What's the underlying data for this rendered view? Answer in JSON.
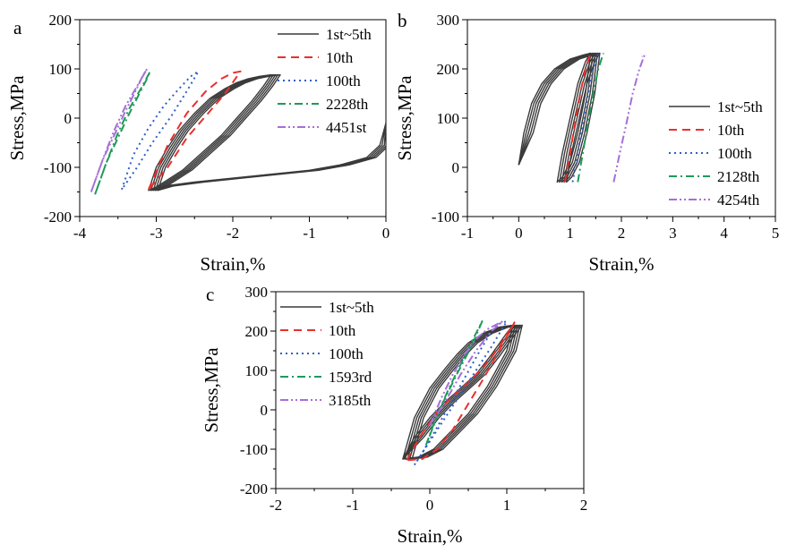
{
  "chart_data": [
    {
      "type": "line",
      "panel_label": "a",
      "xlabel": "Strain,%",
      "ylabel": "Stress,MPa",
      "xlim": [
        -4,
        0
      ],
      "ylim": [
        -200,
        200
      ],
      "xticks": [
        -4,
        -3,
        -2,
        -1,
        0
      ],
      "yticks": [
        -200,
        -100,
        0,
        100,
        200
      ],
      "xtick_labels": [
        "-4",
        "-3",
        "-2",
        "-1",
        "0"
      ],
      "ytick_labels": [
        "-200",
        "-100",
        "0",
        "100",
        "200"
      ],
      "legend_position": "top-right",
      "series": [
        {
          "name": "1st~5th",
          "color": "#3a3a3a",
          "dash": "solid",
          "loop_count": 5,
          "x": [
            0,
            -0.08,
            -0.25,
            -0.6,
            -1.0,
            -1.5,
            -2.0,
            -2.5,
            -2.9,
            -3.1,
            -3.0,
            -2.85,
            -2.7,
            -2.5,
            -2.3,
            -2.1,
            -1.95,
            -1.8,
            -1.65,
            -1.5,
            -1.6,
            -1.75,
            -1.95,
            -2.15,
            -2.4,
            -2.65,
            -2.85,
            -3.0,
            -3.1
          ],
          "y": [
            -10,
            -55,
            -80,
            -95,
            -106,
            -114,
            -122,
            -130,
            -138,
            -147,
            -100,
            -60,
            -25,
            10,
            40,
            60,
            72,
            80,
            85,
            88,
            65,
            35,
            0,
            -35,
            -70,
            -105,
            -125,
            -140,
            -147
          ]
        },
        {
          "name": "10th",
          "color": "#e8302e",
          "dash": "dash",
          "x": [
            -3.1,
            -2.85,
            -2.6,
            -2.35,
            -2.15,
            -2.0,
            -1.9,
            -2.1,
            -2.35,
            -2.6,
            -2.85,
            -3.1
          ],
          "y": [
            -145,
            -55,
            10,
            55,
            80,
            92,
            95,
            50,
            5,
            -40,
            -100,
            -145
          ]
        },
        {
          "name": "100th",
          "color": "#2f5fc8",
          "dash": "dot",
          "x": [
            -3.45,
            -3.3,
            -3.1,
            -2.9,
            -2.7,
            -2.55,
            -2.45,
            -2.6,
            -2.8,
            -3.05,
            -3.25,
            -3.45
          ],
          "y": [
            -145,
            -75,
            -20,
            25,
            60,
            85,
            95,
            55,
            5,
            -50,
            -100,
            -145
          ]
        },
        {
          "name": "2228th",
          "color": "#1e9a5a",
          "dash": "dashdot",
          "x": [
            -3.8,
            -3.65,
            -3.5,
            -3.35,
            -3.22,
            -3.12,
            -3.08,
            -3.2,
            -3.35,
            -3.5,
            -3.65,
            -3.8
          ],
          "y": [
            -155,
            -90,
            -40,
            10,
            50,
            80,
            95,
            60,
            20,
            -30,
            -90,
            -155
          ]
        },
        {
          "name": "4451st",
          "color": "#a56fd8",
          "dash": "dashdotdot",
          "x": [
            -3.85,
            -3.7,
            -3.55,
            -3.4,
            -3.27,
            -3.18,
            -3.12,
            -3.25,
            -3.4,
            -3.55,
            -3.7,
            -3.85
          ],
          "y": [
            -150,
            -85,
            -35,
            15,
            55,
            85,
            100,
            65,
            25,
            -25,
            -85,
            -150
          ]
        }
      ]
    },
    {
      "type": "line",
      "panel_label": "b",
      "xlabel": "Strain,%",
      "ylabel": "Stress,MPa",
      "xlim": [
        -1,
        5
      ],
      "ylim": [
        -100,
        300
      ],
      "xticks": [
        -1,
        0,
        1,
        2,
        3,
        4,
        5
      ],
      "yticks": [
        -100,
        0,
        100,
        200,
        300
      ],
      "xtick_labels": [
        "-1",
        "0",
        "1",
        "2",
        "3",
        "4",
        "5"
      ],
      "ytick_labels": [
        "-100",
        "0",
        "100",
        "200",
        "300"
      ],
      "legend_position": "right",
      "series": [
        {
          "name": "1st~5th",
          "color": "#3a3a3a",
          "dash": "solid",
          "loop_count": 5,
          "x": [
            0,
            0.1,
            0.25,
            0.45,
            0.7,
            1.0,
            1.25,
            1.4,
            1.3,
            1.15,
            1.0,
            0.85,
            0.75,
            0.85,
            1.0,
            1.15,
            1.3,
            1.4
          ],
          "y": [
            5,
            70,
            130,
            170,
            200,
            220,
            228,
            232,
            150,
            70,
            10,
            -20,
            -30,
            30,
            100,
            170,
            215,
            232
          ]
        },
        {
          "name": "10th",
          "color": "#e8302e",
          "dash": "dash",
          "x": [
            0.9,
            1.0,
            1.1,
            1.2,
            1.3,
            1.4
          ],
          "y": [
            -30,
            30,
            90,
            150,
            200,
            232
          ]
        },
        {
          "name": "100th",
          "color": "#2f5fc8",
          "dash": "dot",
          "x": [
            1.05,
            1.15,
            1.25,
            1.35,
            1.45,
            1.55
          ],
          "y": [
            -30,
            30,
            90,
            150,
            200,
            232
          ]
        },
        {
          "name": "2128th",
          "color": "#1e9a5a",
          "dash": "dashdot",
          "x": [
            1.15,
            1.25,
            1.35,
            1.45,
            1.55,
            1.65
          ],
          "y": [
            -30,
            30,
            90,
            150,
            200,
            232
          ]
        },
        {
          "name": "4254th",
          "color": "#a56fd8",
          "dash": "dashdotdot",
          "x": [
            1.85,
            1.97,
            2.1,
            2.22,
            2.35,
            2.45,
            2.4
          ],
          "y": [
            -30,
            30,
            90,
            150,
            200,
            228,
            225
          ]
        }
      ]
    },
    {
      "type": "line",
      "panel_label": "c",
      "xlabel": "Strain,%",
      "ylabel": "Stress,MPa",
      "xlim": [
        -2,
        2
      ],
      "ylim": [
        -200,
        300
      ],
      "xticks": [
        -2,
        -1,
        0,
        1,
        2
      ],
      "yticks": [
        -200,
        -100,
        0,
        100,
        200,
        300
      ],
      "xtick_labels": [
        "-2",
        "-1",
        "0",
        "1",
        "2"
      ],
      "ytick_labels": [
        "-200",
        "-100",
        "0",
        "100",
        "200",
        "300"
      ],
      "legend_position": "top-left",
      "series": [
        {
          "name": "1st~5th",
          "color": "#3a3a3a",
          "dash": "solid",
          "loop_count": 5,
          "x": [
            -0.35,
            -0.2,
            0,
            0.2,
            0.4,
            0.6,
            0.8,
            1.0,
            1.08,
            0.9,
            0.7,
            0.5,
            0.35,
            0.2,
            0.0,
            -0.2,
            -0.35,
            -0.15,
            0.05,
            0.25,
            0.5,
            0.75,
            1.0,
            1.08
          ],
          "y": [
            -125,
            -70,
            -20,
            20,
            55,
            90,
            140,
            195,
            215,
            210,
            195,
            170,
            140,
            105,
            55,
            -20,
            -125,
            -120,
            -100,
            -60,
            -10,
            60,
            150,
            215
          ]
        },
        {
          "name": "10th",
          "color": "#e8302e",
          "dash": "dash",
          "x": [
            -0.3,
            -0.1,
            0.1,
            0.3,
            0.5,
            0.7,
            0.9,
            1.1,
            0.9,
            0.7,
            0.5,
            0.3,
            0.1,
            -0.1,
            -0.3
          ],
          "y": [
            -128,
            -60,
            -5,
            35,
            70,
            110,
            160,
            222,
            150,
            80,
            15,
            -50,
            -100,
            -125,
            -128
          ]
        },
        {
          "name": "100th",
          "color": "#2f5fc8",
          "dash": "dot",
          "x": [
            -0.2,
            0,
            0.2,
            0.4,
            0.6,
            0.8,
            1.0,
            0.85,
            0.65,
            0.45,
            0.25,
            0.05,
            -0.1,
            -0.2
          ],
          "y": [
            -140,
            -80,
            -20,
            40,
            100,
            160,
            225,
            215,
            150,
            80,
            10,
            -60,
            -110,
            -140
          ]
        },
        {
          "name": "1593rd",
          "color": "#1e9a5a",
          "dash": "dashdot",
          "x": [
            -0.05,
            0.1,
            0.25,
            0.4,
            0.55,
            0.68,
            0.55,
            0.35,
            0.15,
            -0.05
          ],
          "y": [
            -90,
            -10,
            55,
            115,
            175,
            225,
            165,
            90,
            10,
            -90
          ]
        },
        {
          "name": "3185th",
          "color": "#a56fd8",
          "dash": "dashdotdot",
          "x": [
            0.0,
            0.15,
            0.3,
            0.45,
            0.6,
            0.75,
            0.85,
            0.95,
            0.8,
            0.6,
            0.4,
            0.2,
            0.0
          ],
          "y": [
            -40,
            30,
            90,
            140,
            180,
            205,
            215,
            225,
            200,
            150,
            90,
            20,
            -40
          ]
        }
      ]
    }
  ]
}
